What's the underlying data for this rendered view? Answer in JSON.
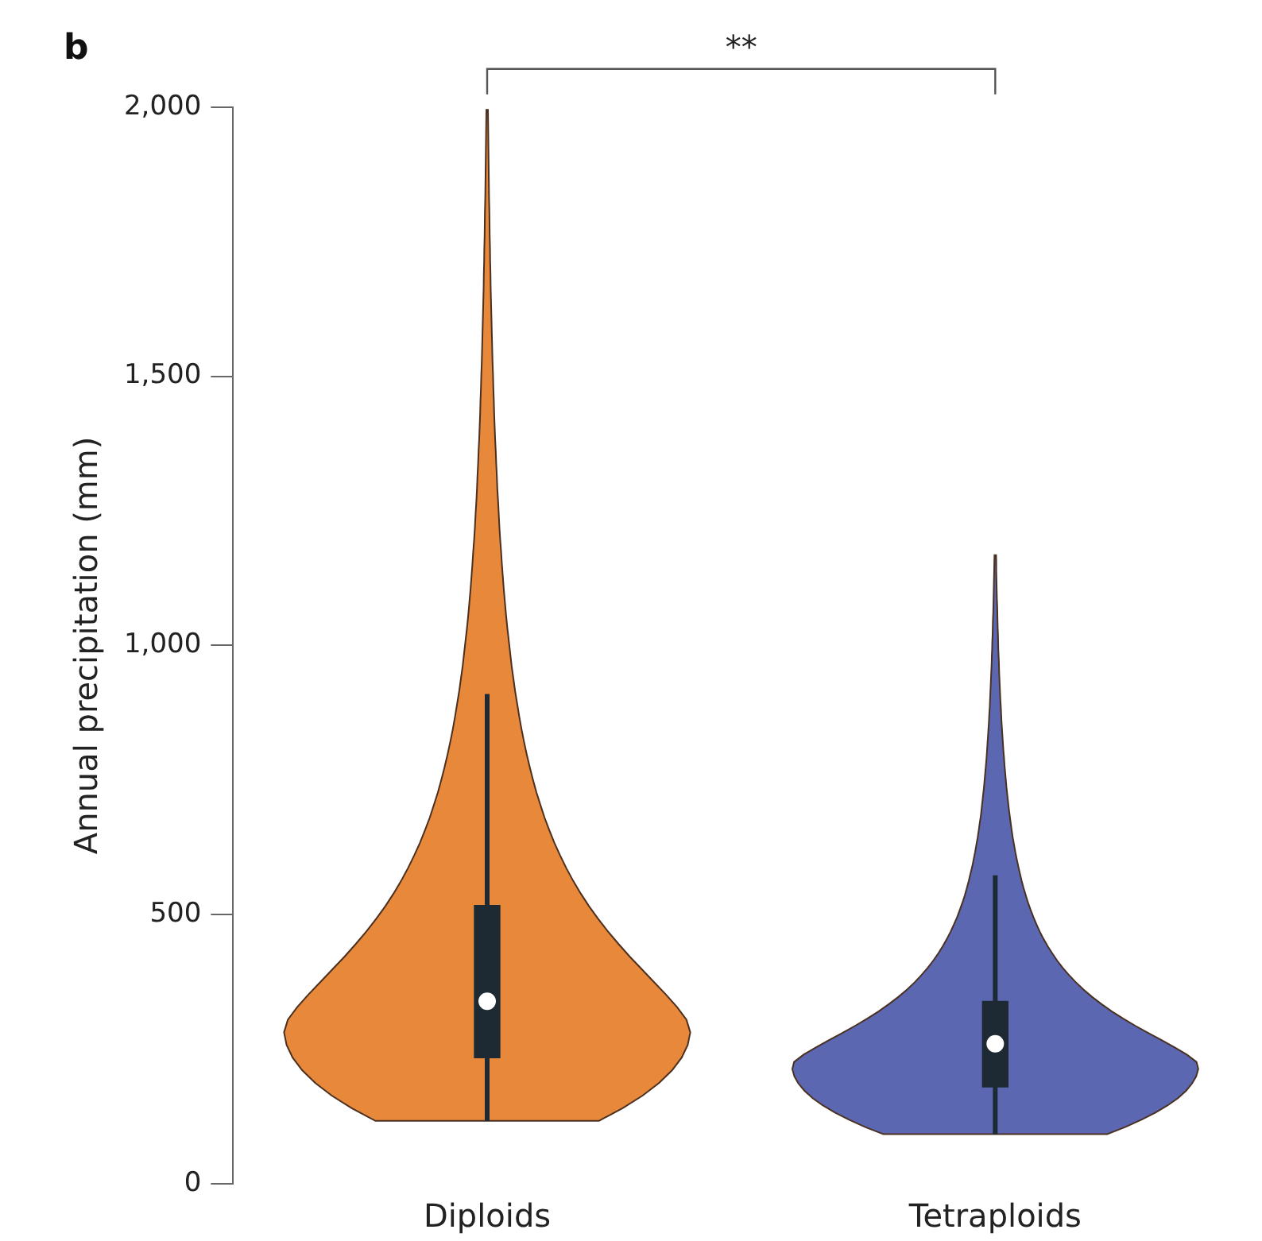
{
  "chart_data": {
    "type": "box",
    "title": "b",
    "ylabel": "Annual precipitation (mm)",
    "categories": [
      "Diploids",
      "Tetraploids"
    ],
    "color": "#1e2a33",
    "boxes": [
      {
        "low": 117,
        "q1": 234,
        "median": 339,
        "q3": 517,
        "high": 910
      },
      {
        "low": 92,
        "q1": 180,
        "median": 260,
        "q3": 339,
        "high": 573
      }
    ],
    "ylim": [
      0,
      2000
    ],
    "yticks": [
      {
        "value": 0,
        "label": "0"
      },
      {
        "value": 500,
        "label": "500"
      },
      {
        "value": 1000,
        "label": "1,000"
      },
      {
        "value": 1500,
        "label": "1,500"
      },
      {
        "value": 2000,
        "label": "2,000"
      }
    ],
    "annotations": [
      "**"
    ]
  }
}
